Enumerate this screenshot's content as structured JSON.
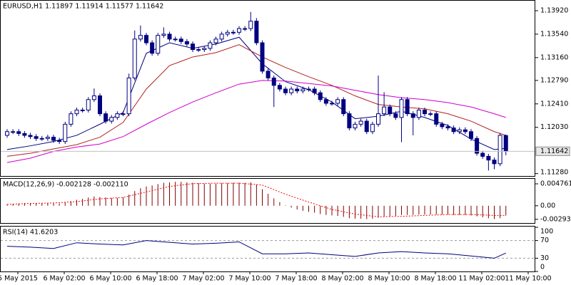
{
  "chart_data": [
    {
      "type": "candlestick",
      "title": "EURUSD,H1 1.11897 1.11914 1.11577 1.11642",
      "open": [
        1.119,
        1.1196,
        1.1196,
        1.1193,
        1.119,
        1.1188,
        1.1185,
        1.1185,
        1.1187,
        1.1182,
        1.118,
        1.1208,
        1.1225,
        1.1231,
        1.1231,
        1.1248,
        1.1254,
        1.1225,
        1.1213,
        1.1219,
        1.1225,
        1.1225,
        1.1283,
        1.1346,
        1.1352,
        1.134,
        1.1323,
        1.1352,
        1.1354,
        1.1346,
        1.1346,
        1.1342,
        1.1338,
        1.1329,
        1.1329,
        1.1331,
        1.134,
        1.1346,
        1.1354,
        1.1357,
        1.1357,
        1.1363,
        1.1363,
        1.1375,
        1.134,
        1.1294,
        1.1283,
        1.1271,
        1.1265,
        1.1259,
        1.1265,
        1.1262,
        1.1265,
        1.1265,
        1.1259,
        1.1248,
        1.1242,
        1.1242,
        1.1248,
        1.1225,
        1.1202,
        1.1208,
        1.1213,
        1.1196,
        1.1208,
        1.1225,
        1.1236,
        1.1225,
        1.1219,
        1.1248,
        1.1225,
        1.1219,
        1.1231,
        1.1225,
        1.1225,
        1.1208,
        1.1204,
        1.1202,
        1.1196,
        1.1199,
        1.1196,
        1.1185,
        1.1161,
        1.1156,
        1.115,
        1.1144,
        1.11897
      ],
      "high": [
        1.12,
        1.12,
        1.12,
        1.1197,
        1.1194,
        1.1192,
        1.1189,
        1.1191,
        1.1191,
        1.1186,
        1.1212,
        1.1229,
        1.1235,
        1.1235,
        1.1252,
        1.1266,
        1.1258,
        1.1229,
        1.1223,
        1.1229,
        1.1229,
        1.129,
        1.136,
        1.1368,
        1.1356,
        1.1344,
        1.1356,
        1.1365,
        1.1358,
        1.135,
        1.135,
        1.1346,
        1.1342,
        1.1333,
        1.1335,
        1.1344,
        1.135,
        1.1358,
        1.1361,
        1.1361,
        1.1367,
        1.1367,
        1.139,
        1.138,
        1.1344,
        1.1298,
        1.1287,
        1.1275,
        1.1269,
        1.1269,
        1.1269,
        1.1269,
        1.1269,
        1.1269,
        1.1263,
        1.1252,
        1.1246,
        1.1252,
        1.1252,
        1.1229,
        1.1212,
        1.1217,
        1.1217,
        1.1212,
        1.1287,
        1.126,
        1.124,
        1.1229,
        1.1252,
        1.1252,
        1.1229,
        1.1235,
        1.1235,
        1.1229,
        1.1229,
        1.1212,
        1.1208,
        1.1206,
        1.1203,
        1.1203,
        1.12,
        1.1189,
        1.1165,
        1.116,
        1.1154,
        1.1194,
        1.11914
      ],
      "low": [
        1.1186,
        1.1192,
        1.1189,
        1.1186,
        1.1184,
        1.1181,
        1.1181,
        1.1181,
        1.1178,
        1.1176,
        1.1176,
        1.1204,
        1.1221,
        1.1227,
        1.1227,
        1.1244,
        1.1221,
        1.1209,
        1.1209,
        1.1215,
        1.1221,
        1.1221,
        1.1279,
        1.1342,
        1.1336,
        1.1319,
        1.1319,
        1.1348,
        1.1342,
        1.1342,
        1.1338,
        1.1334,
        1.1325,
        1.1325,
        1.1325,
        1.1327,
        1.1336,
        1.1342,
        1.135,
        1.1353,
        1.1353,
        1.1359,
        1.1359,
        1.1336,
        1.129,
        1.1279,
        1.1236,
        1.1261,
        1.1255,
        1.1255,
        1.1258,
        1.1258,
        1.1261,
        1.1255,
        1.1244,
        1.1238,
        1.1238,
        1.1238,
        1.1221,
        1.1198,
        1.1198,
        1.1204,
        1.1192,
        1.1192,
        1.1204,
        1.1221,
        1.1221,
        1.1215,
        1.1179,
        1.1221,
        1.119,
        1.1215,
        1.1221,
        1.1221,
        1.1204,
        1.12,
        1.1198,
        1.1192,
        1.1192,
        1.1192,
        1.1181,
        1.1157,
        1.1152,
        1.1133,
        1.1135,
        1.114,
        1.11577
      ],
      "close": [
        1.1196,
        1.1196,
        1.1193,
        1.119,
        1.1188,
        1.1185,
        1.1185,
        1.1187,
        1.1182,
        1.118,
        1.1208,
        1.1225,
        1.1231,
        1.1231,
        1.1248,
        1.1254,
        1.1225,
        1.1213,
        1.1219,
        1.1225,
        1.1225,
        1.1283,
        1.1346,
        1.1352,
        1.134,
        1.1323,
        1.1352,
        1.1354,
        1.1346,
        1.1346,
        1.1342,
        1.1338,
        1.1329,
        1.1329,
        1.1331,
        1.134,
        1.1346,
        1.1354,
        1.1357,
        1.1357,
        1.1363,
        1.1363,
        1.1375,
        1.134,
        1.1294,
        1.1283,
        1.1271,
        1.1265,
        1.1259,
        1.1265,
        1.1262,
        1.1265,
        1.1265,
        1.1259,
        1.1248,
        1.1242,
        1.1242,
        1.1248,
        1.1225,
        1.1202,
        1.1208,
        1.1213,
        1.1196,
        1.1208,
        1.1225,
        1.1236,
        1.1225,
        1.1219,
        1.1248,
        1.1225,
        1.1219,
        1.1231,
        1.1225,
        1.1225,
        1.1208,
        1.1204,
        1.1202,
        1.1196,
        1.1199,
        1.1196,
        1.1185,
        1.1161,
        1.1156,
        1.115,
        1.1144,
        1.119,
        1.11642
      ],
      "up_color": "#ffffff",
      "down_color": "#000080",
      "wick_color": "#000080",
      "ylim": [
        1.1123,
        1.1407
      ],
      "yticks": [
        {
          "value": 1.1392,
          "label": "1.13920"
        },
        {
          "value": 1.1354,
          "label": "1.13540"
        },
        {
          "value": 1.1316,
          "label": "1.13160"
        },
        {
          "value": 1.1279,
          "label": "1.12790"
        },
        {
          "value": 1.1241,
          "label": "1.12410"
        },
        {
          "value": 1.1203,
          "label": "1.12030"
        },
        {
          "value": 1.1128,
          "label": "1.11280"
        }
      ],
      "lines": [
        {
          "color": "#000080",
          "x": [
            0,
            4,
            8,
            12,
            16,
            20,
            24,
            28,
            32,
            36,
            40,
            44,
            48,
            52,
            56,
            60,
            64,
            68,
            72,
            76,
            80,
            84,
            86
          ],
          "values": [
            1.1167,
            1.1173,
            1.118,
            1.119,
            1.1208,
            1.1227,
            1.1323,
            1.134,
            1.1331,
            1.1338,
            1.1349,
            1.1306,
            1.1277,
            1.1264,
            1.1244,
            1.1217,
            1.1221,
            1.1229,
            1.1219,
            1.1206,
            1.1184,
            1.1167,
            1.1169
          ]
        },
        {
          "color": "#b22222",
          "x": [
            0,
            4,
            8,
            12,
            16,
            20,
            24,
            28,
            32,
            36,
            40,
            44,
            48,
            52,
            56,
            60,
            64,
            68,
            72,
            76,
            80,
            84,
            86
          ],
          "values": [
            1.1156,
            1.1161,
            1.1168,
            1.1175,
            1.1187,
            1.1211,
            1.1265,
            1.1303,
            1.1317,
            1.1324,
            1.1337,
            1.1317,
            1.13,
            1.1285,
            1.1271,
            1.1254,
            1.124,
            1.1236,
            1.1233,
            1.1225,
            1.1213,
            1.1196,
            1.119
          ]
        },
        {
          "color": "#cc00cc",
          "x": [
            0,
            4,
            8,
            12,
            16,
            20,
            24,
            28,
            32,
            36,
            40,
            44,
            48,
            52,
            56,
            60,
            64,
            68,
            72,
            76,
            80,
            84,
            86
          ],
          "values": [
            1.1146,
            1.1153,
            1.1164,
            1.1171,
            1.1176,
            1.1188,
            1.1208,
            1.1227,
            1.1244,
            1.1259,
            1.1273,
            1.1279,
            1.1278,
            1.1274,
            1.127,
            1.1263,
            1.1256,
            1.1251,
            1.1248,
            1.1243,
            1.1236,
            1.1225,
            1.1219
          ]
        }
      ],
      "x_labels": [
        "5 May 2015",
        "6 May 02:00",
        "6 May 10:00",
        "6 May 18:00",
        "7 May 02:00",
        "7 May 10:00",
        "7 May 18:00",
        "8 May 02:00",
        "8 May 10:00",
        "8 May 18:00",
        "11 May 02:00",
        "11 May 10:00"
      ]
    },
    {
      "type": "macd",
      "title": "MACD(12,26,9) -0.002128 -0.002110",
      "histogram": [
        0.0003,
        0.0004,
        0.0005,
        0.0006,
        0.0006,
        0.0006,
        0.0006,
        0.0006,
        0.0005,
        0.0005,
        0.0007,
        0.001,
        0.0013,
        0.0015,
        0.0018,
        0.002,
        0.0019,
        0.0018,
        0.0017,
        0.0017,
        0.0018,
        0.0024,
        0.0032,
        0.0038,
        0.0042,
        0.0044,
        0.0047,
        0.005,
        0.0051,
        0.0052,
        0.0052,
        0.0051,
        0.005,
        0.0049,
        0.0048,
        0.0048,
        0.0048,
        0.0049,
        0.0049,
        0.005,
        0.005,
        0.005,
        0.0051,
        0.0046,
        0.0036,
        0.0026,
        0.0016,
        0.0008,
        0.0001,
        -0.0004,
        -0.0008,
        -0.0011,
        -0.0013,
        -0.0015,
        -0.0018,
        -0.002,
        -0.0021,
        -0.0022,
        -0.0024,
        -0.0027,
        -0.0028,
        -0.0028,
        -0.0029,
        -0.0028,
        -0.0026,
        -0.0024,
        -0.0023,
        -0.0022,
        -0.002,
        -0.002,
        -0.002,
        -0.0019,
        -0.0019,
        -0.0019,
        -0.0019,
        -0.0019,
        -0.0019,
        -0.002,
        -0.002,
        -0.002,
        -0.0021,
        -0.0023,
        -0.0025,
        -0.0027,
        -0.0029,
        -0.0027,
        -0.002128
      ],
      "histogram_color": "#800000",
      "signal": {
        "color": "#ff0000",
        "x": [
          0,
          4,
          8,
          12,
          16,
          20,
          24,
          28,
          32,
          36,
          40,
          44,
          48,
          52,
          56,
          60,
          64,
          68,
          72,
          76,
          80,
          84,
          86
        ],
        "values": [
          0.0003,
          0.0005,
          0.0006,
          0.0009,
          0.0015,
          0.0018,
          0.003,
          0.0042,
          0.0048,
          0.0049,
          0.0049,
          0.0045,
          0.0025,
          0.0008,
          -0.0008,
          -0.0018,
          -0.0024,
          -0.0023,
          -0.0021,
          -0.0019,
          -0.0019,
          -0.0021,
          -0.00211
        ]
      },
      "ylim": [
        -0.0039,
        0.006
      ],
      "yticks": [
        0.004761,
        {
          "value": 0,
          "label": "0.00"
        },
        -0.002939
      ]
    },
    {
      "type": "rsi",
      "title": "RSI(14) 41.6203",
      "color": "#000080",
      "x": [
        0,
        4,
        8,
        12,
        16,
        20,
        24,
        28,
        32,
        36,
        40,
        44,
        48,
        52,
        56,
        60,
        64,
        68,
        72,
        76,
        80,
        84,
        86
      ],
      "values": [
        57,
        55,
        52,
        65,
        62,
        60,
        70,
        66,
        62,
        64,
        67,
        40,
        40,
        42,
        38,
        34,
        42,
        45,
        42,
        40,
        35,
        30,
        41.6203
      ],
      "ylim": [
        0,
        100
      ],
      "yticks": [
        100,
        70,
        30,
        0
      ]
    }
  ]
}
